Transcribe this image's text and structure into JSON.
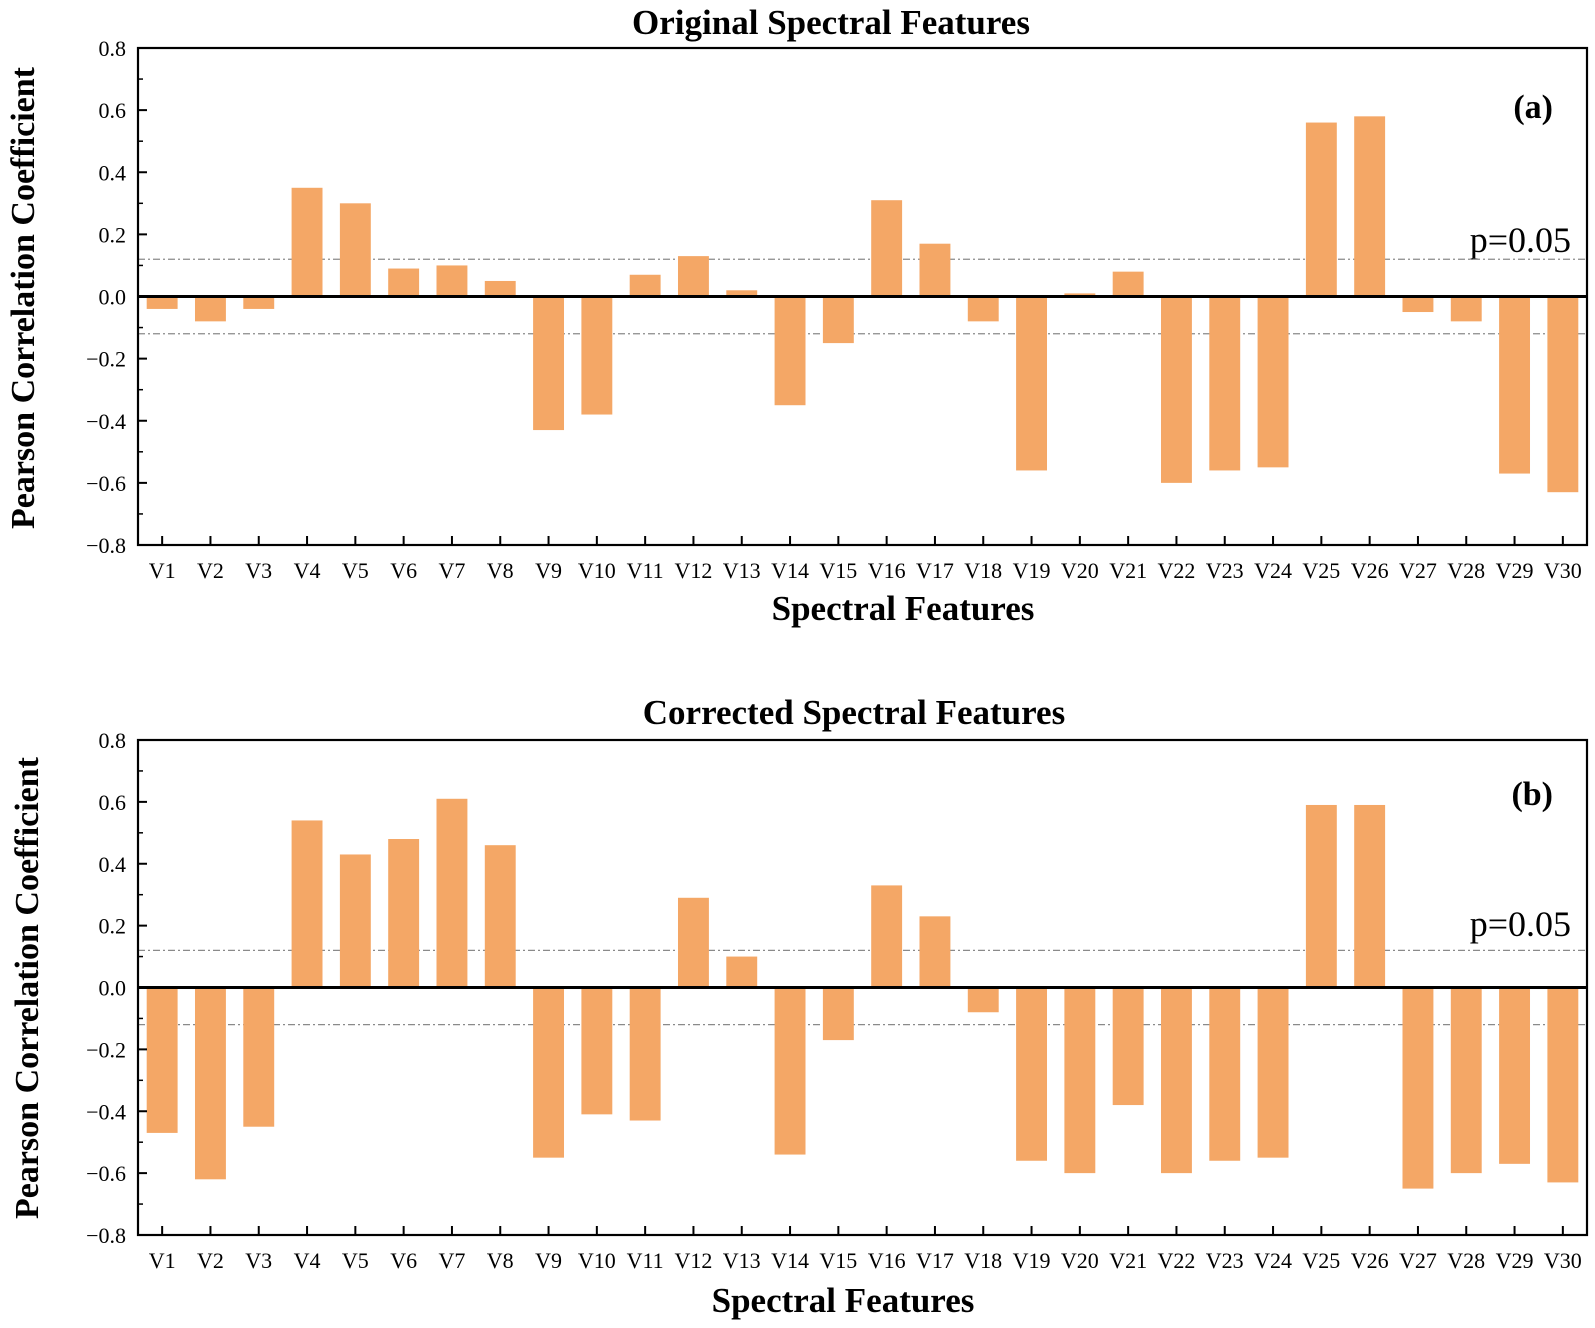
{
  "chart_data": [
    {
      "type": "bar",
      "panel_label": "(a)",
      "title": "Original Spectral Features",
      "xlabel": "Spectral Features",
      "ylabel": "Pearson Correlation Coefficient",
      "ylim": [
        -0.8,
        0.8
      ],
      "yticks": [
        0.8,
        0.6,
        0.4,
        0.2,
        0.0,
        -0.2,
        -0.4,
        -0.6,
        -0.8
      ],
      "ytick_labels": [
        "0.8",
        "0.6",
        "0.4",
        "0.2",
        "0.0",
        "−0.2",
        "−0.4",
        "−0.6",
        "−0.8"
      ],
      "categories": [
        "V1",
        "V2",
        "V3",
        "V4",
        "V5",
        "V6",
        "V7",
        "V8",
        "V9",
        "V10",
        "V11",
        "V12",
        "V13",
        "V14",
        "V15",
        "V16",
        "V17",
        "V18",
        "V19",
        "V20",
        "V21",
        "V22",
        "V23",
        "V24",
        "V25",
        "V26",
        "V27",
        "V28",
        "V29",
        "V30"
      ],
      "values": [
        -0.04,
        -0.08,
        -0.04,
        0.35,
        0.3,
        0.09,
        0.1,
        0.05,
        -0.43,
        -0.38,
        0.07,
        0.13,
        0.02,
        -0.35,
        -0.15,
        0.31,
        0.17,
        -0.08,
        -0.56,
        0.01,
        0.08,
        -0.6,
        -0.56,
        -0.55,
        0.56,
        0.58,
        -0.05,
        -0.08,
        -0.57,
        -0.63
      ],
      "significance_threshold": 0.12,
      "significance_label": "p=0.05",
      "bar_color": "#f4a766"
    },
    {
      "type": "bar",
      "panel_label": "(b)",
      "title": "Corrected Spectral Features",
      "xlabel": "Spectral Features",
      "ylabel": "Pearson Correlation Coefficient",
      "ylim": [
        -0.8,
        0.8
      ],
      "yticks": [
        0.8,
        0.6,
        0.4,
        0.2,
        0.0,
        -0.2,
        -0.4,
        -0.6,
        -0.8
      ],
      "ytick_labels": [
        "0.8",
        "0.6",
        "0.4",
        "0.2",
        "0.0",
        "−0.2",
        "−0.4",
        "−0.6",
        "−0.8"
      ],
      "categories": [
        "V1",
        "V2",
        "V3",
        "V4",
        "V5",
        "V6",
        "V7",
        "V8",
        "V9",
        "V10",
        "V11",
        "V12",
        "V13",
        "V14",
        "V15",
        "V16",
        "V17",
        "V18",
        "V19",
        "V20",
        "V21",
        "V22",
        "V23",
        "V24",
        "V25",
        "V26",
        "V27",
        "V28",
        "V29",
        "V30"
      ],
      "values": [
        -0.47,
        -0.62,
        -0.45,
        0.54,
        0.43,
        0.48,
        0.61,
        0.46,
        -0.55,
        -0.41,
        -0.43,
        0.29,
        0.1,
        -0.54,
        -0.17,
        0.33,
        0.23,
        -0.08,
        -0.56,
        -0.6,
        -0.38,
        -0.6,
        -0.56,
        -0.55,
        0.59,
        0.59,
        -0.65,
        -0.6,
        -0.57,
        -0.63
      ],
      "significance_threshold": 0.12,
      "significance_label": "p=0.05",
      "bar_color": "#f4a766"
    }
  ]
}
